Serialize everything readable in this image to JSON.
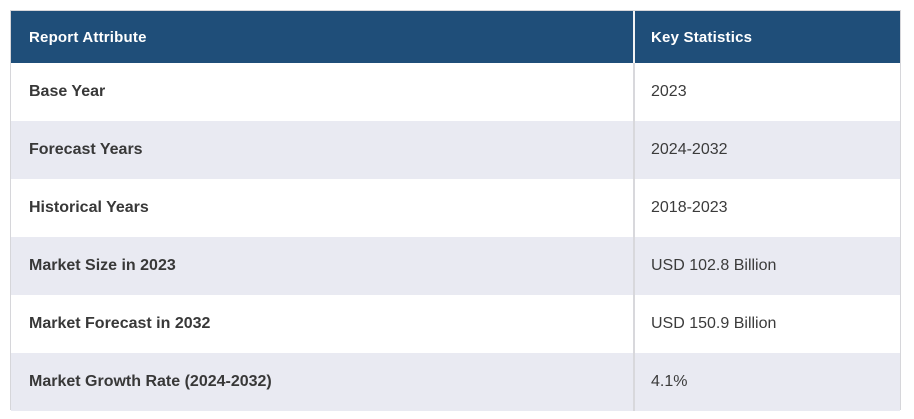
{
  "table": {
    "columns": {
      "attribute_header": "Report Attribute",
      "statistics_header": "Key Statistics"
    },
    "rows": [
      {
        "attribute": "Base Year",
        "value": "2023"
      },
      {
        "attribute": "Forecast Years",
        "value": "2024-2032"
      },
      {
        "attribute": "Historical Years",
        "value": "2018-2023"
      },
      {
        "attribute": "Market Size in 2023",
        "value": "USD 102.8 Billion"
      },
      {
        "attribute": "Market Forecast in 2032",
        "value": "USD 150.9 Billion"
      },
      {
        "attribute": "Market Growth Rate (2024-2032)",
        "value": "4.1%"
      }
    ],
    "colors": {
      "header_bg": "#1F4E79",
      "header_text": "#FFFFFF",
      "alt_row_bg": "#E9EAF2",
      "row_bg": "#FFFFFF",
      "body_text": "#3B3B3B",
      "column_divider": "#D8D8DC",
      "outer_border": "#D6D6DA"
    }
  }
}
